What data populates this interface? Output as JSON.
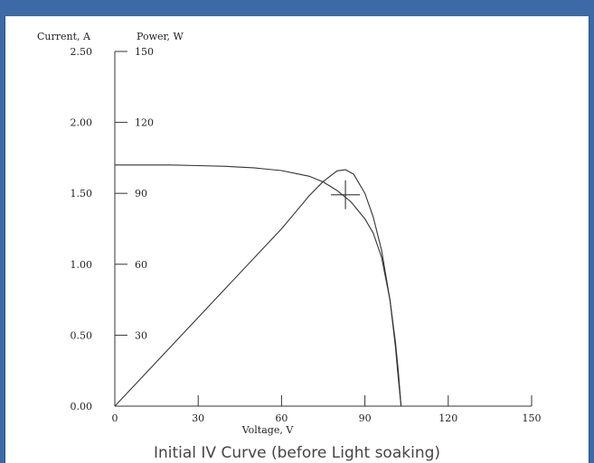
{
  "caption": "Initial IV Curve (before Light soaking)",
  "colors": {
    "banner": "#3d6aa6",
    "background": "#ffffff",
    "ink": "#333333"
  },
  "chart_data": {
    "type": "line",
    "xlabel": "Voltage, V",
    "ylabel_left": "Current, A",
    "ylabel_right": "Power, W",
    "xlim": [
      0,
      150
    ],
    "ylim_left": [
      0,
      2.5
    ],
    "ylim_right": [
      0,
      150
    ],
    "x_ticks": [
      "0",
      "30",
      "60",
      "90",
      "120",
      "150"
    ],
    "y_left_ticks": [
      "0.00",
      "0.50",
      "1.00",
      "1.50",
      "2.00",
      "2.50"
    ],
    "y_right_ticks": [
      "30",
      "60",
      "90",
      "120",
      "150"
    ],
    "grid": false,
    "series": [
      {
        "axis": "left",
        "x": [
          0,
          10,
          20,
          30,
          40,
          50,
          55,
          60,
          65,
          70,
          75,
          80,
          85,
          90,
          93,
          96,
          99,
          101,
          102,
          103
        ],
        "y": [
          1.7,
          1.7,
          1.7,
          1.695,
          1.69,
          1.68,
          1.67,
          1.66,
          1.64,
          1.62,
          1.58,
          1.52,
          1.44,
          1.32,
          1.22,
          1.05,
          0.75,
          0.45,
          0.25,
          0.0
        ]
      },
      {
        "axis": "right",
        "x": [
          0,
          20,
          40,
          60,
          65,
          70,
          75,
          80,
          83,
          86,
          90,
          93,
          96,
          99,
          101,
          102,
          103
        ],
        "y": [
          0,
          25,
          50,
          75,
          82,
          89,
          95,
          99.5,
          100,
          98,
          90,
          80,
          66,
          45,
          25,
          12,
          0
        ]
      }
    ],
    "annotations": [
      {
        "type": "cross",
        "x": 83,
        "y_left": 1.49
      }
    ]
  }
}
